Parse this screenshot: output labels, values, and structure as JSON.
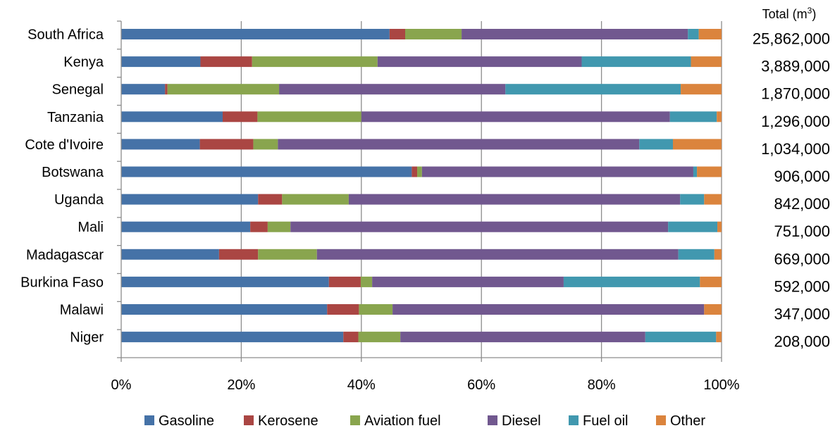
{
  "chart_data": {
    "type": "bar",
    "orientation": "horizontal",
    "stacked": "percent",
    "totals_header": {
      "text": "Total (m",
      "sup": "3",
      "close": ")"
    },
    "categories": [
      "South Africa",
      "Kenya",
      "Senegal",
      "Tanzania",
      "Cote d'Ivoire",
      "Botswana",
      "Uganda",
      "Mali",
      "Madagascar",
      "Burkina Faso",
      "Malawi",
      "Niger"
    ],
    "totals": [
      "25,862,000",
      "3,889,000",
      "1,870,000",
      "1,296,000",
      "1,034,000",
      "906,000",
      "842,000",
      "751,000",
      "669,000",
      "592,000",
      "347,000",
      "208,000"
    ],
    "series": [
      {
        "name": "Gasoline",
        "color": "#4572A7",
        "values": [
          44.7,
          13.2,
          7.3,
          16.9,
          13.1,
          48.4,
          22.8,
          21.5,
          16.3,
          34.6,
          34.3,
          37.0
        ]
      },
      {
        "name": "Kerosene",
        "color": "#AA4643",
        "values": [
          2.6,
          8.6,
          0.4,
          5.8,
          8.9,
          0.9,
          4.0,
          2.9,
          6.5,
          5.3,
          5.3,
          2.5
        ]
      },
      {
        "name": "Aviation fuel",
        "color": "#89A54E",
        "values": [
          9.4,
          20.9,
          18.6,
          17.3,
          4.1,
          0.8,
          11.1,
          3.8,
          9.8,
          1.9,
          5.6,
          7.0
        ]
      },
      {
        "name": "Diesel",
        "color": "#71588F",
        "values": [
          37.7,
          34.0,
          37.7,
          51.4,
          60.2,
          45.2,
          55.2,
          62.9,
          60.2,
          31.9,
          51.9,
          40.8
        ]
      },
      {
        "name": "Fuel oil",
        "color": "#4198AF",
        "values": [
          1.8,
          18.2,
          29.2,
          7.8,
          5.6,
          0.6,
          4.0,
          8.2,
          6.0,
          22.7,
          0.0,
          11.8
        ]
      },
      {
        "name": "Other",
        "color": "#DB843D",
        "values": [
          3.8,
          5.1,
          6.8,
          0.8,
          8.1,
          4.1,
          2.9,
          0.7,
          1.2,
          3.6,
          2.9,
          0.9
        ]
      }
    ],
    "xlim": [
      0,
      100
    ],
    "x_ticks": [
      "0%",
      "20%",
      "40%",
      "60%",
      "80%",
      "100%"
    ],
    "grid": true,
    "legend_position": "bottom"
  }
}
